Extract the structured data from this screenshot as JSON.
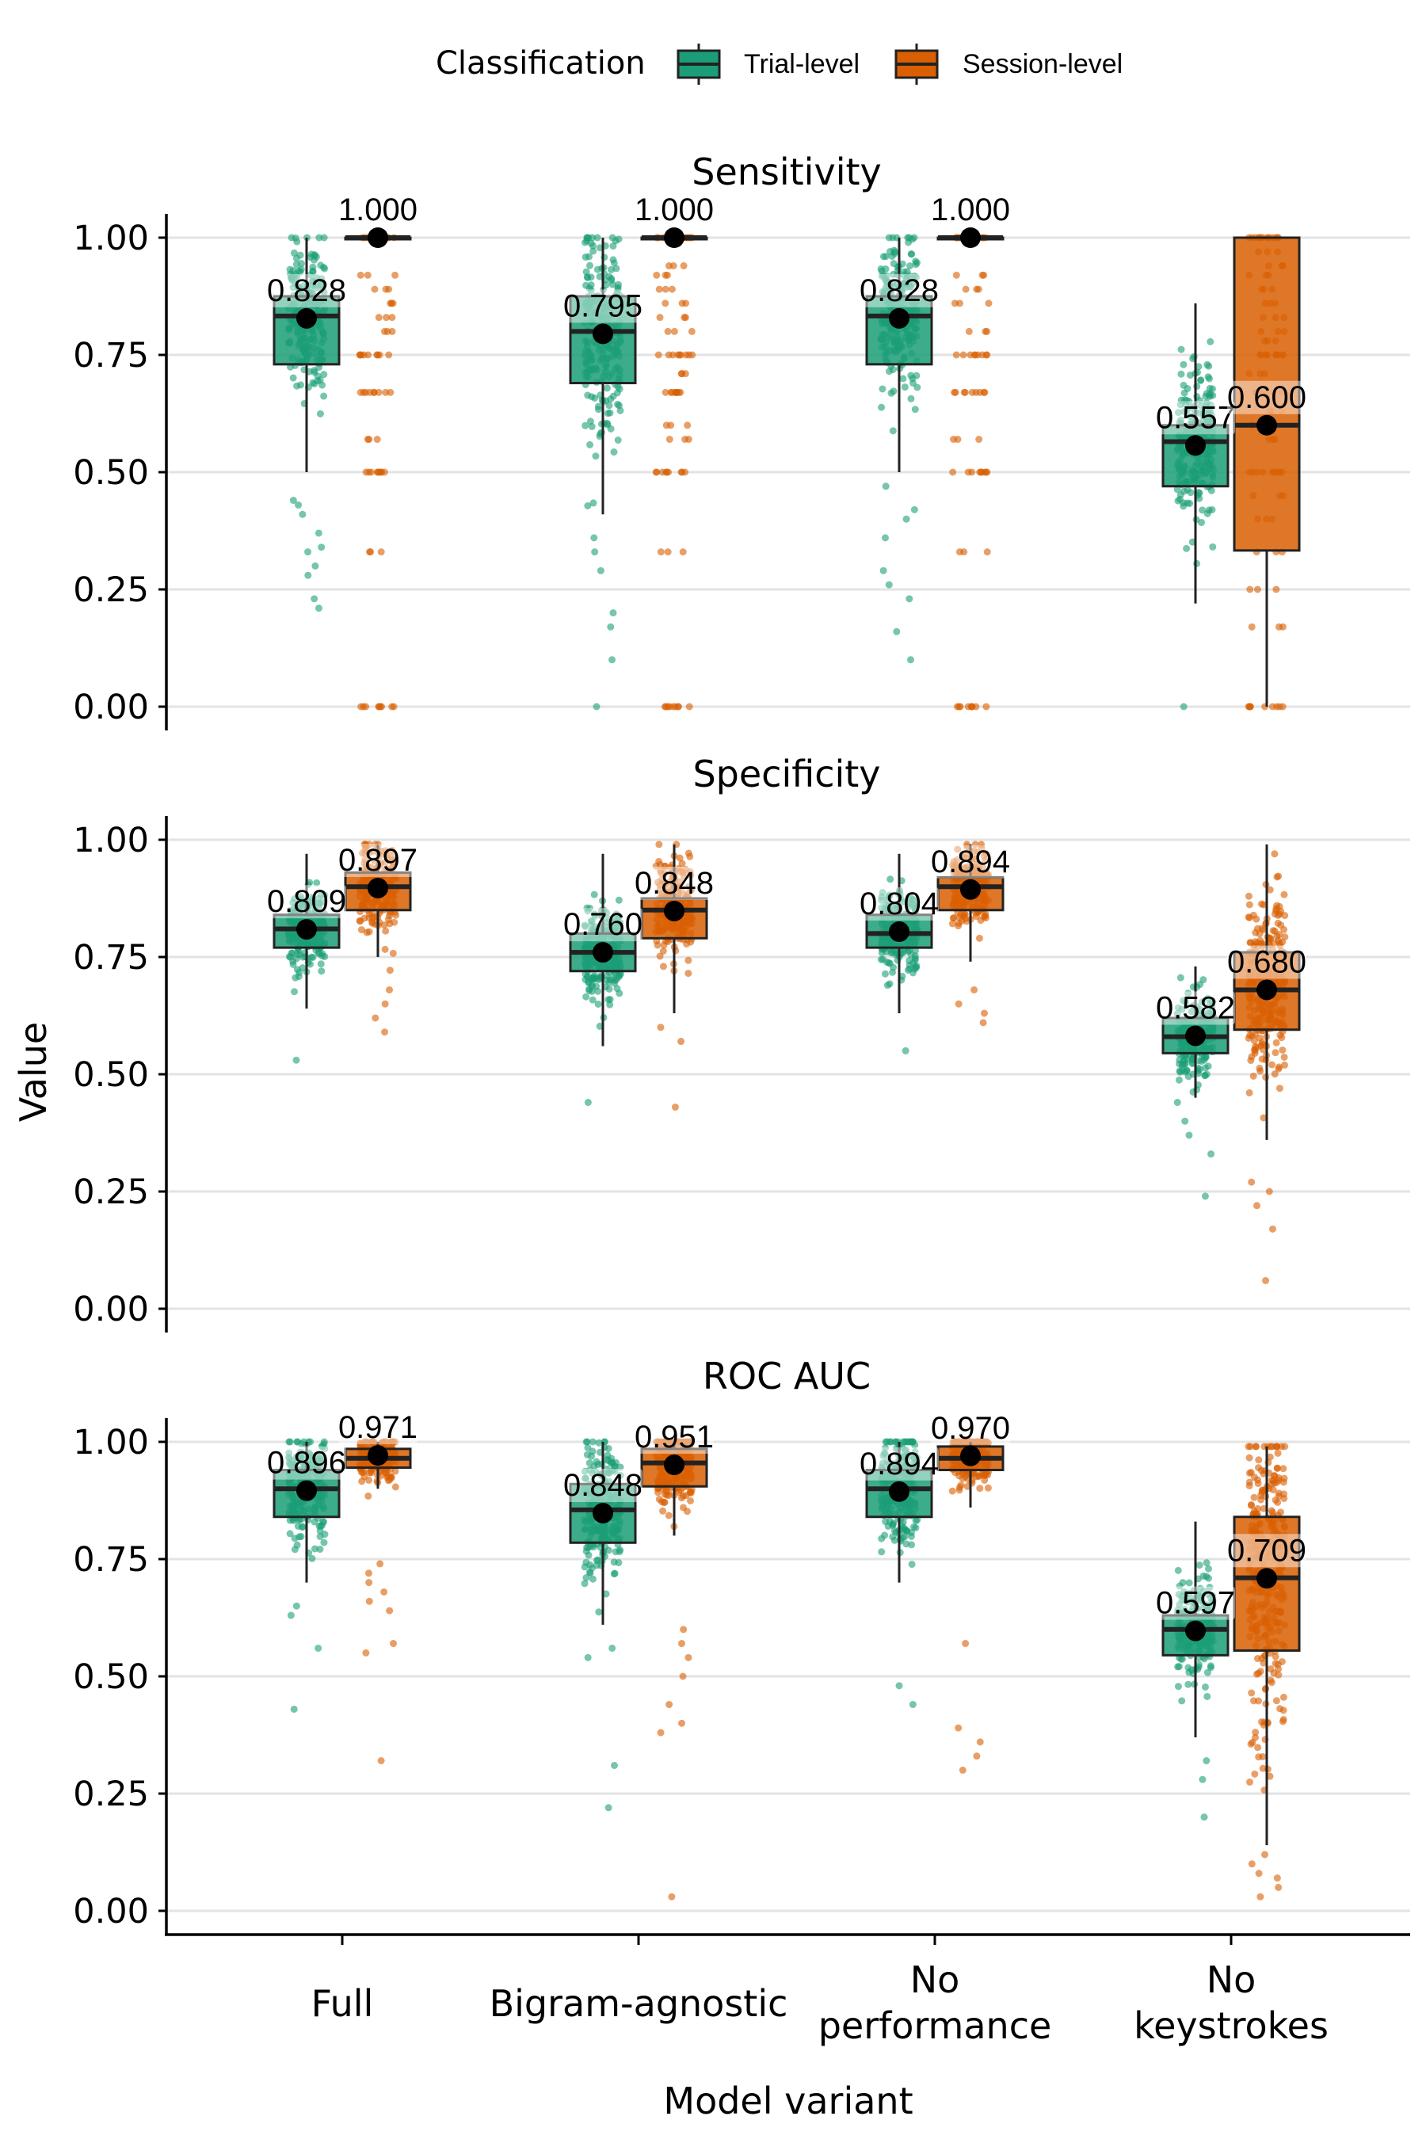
{
  "chart_data": {
    "type": "boxplot",
    "xlabel": "Model variant",
    "ylabel": "Value",
    "ylim": [
      0,
      1
    ],
    "yticks": [
      "0.00",
      "0.25",
      "0.50",
      "0.75",
      "1.00"
    ],
    "categories": [
      [
        "Full"
      ],
      [
        "Bigram-agnostic"
      ],
      [
        "No",
        "performance"
      ],
      [
        "No",
        "keystrokes"
      ]
    ],
    "legend": {
      "title": "Classification",
      "position": "top",
      "entries": [
        {
          "name": "Trial-level",
          "color": "#1b9e77"
        },
        {
          "name": "Session-level",
          "color": "#d95f02"
        }
      ]
    },
    "panels": [
      {
        "title": "Sensitivity",
        "groups": [
          {
            "cat": 0,
            "series": "Trial-level",
            "mean": 0.828,
            "label": "0.828",
            "q1": 0.73,
            "median": 0.833,
            "q3": 0.875,
            "whisker_low": 0.5,
            "whisker_high": 1.0,
            "n": 220,
            "spread_low": 0.5,
            "spread_high": 1.0,
            "outliers": [
              0.21,
              0.23,
              0.28,
              0.3,
              0.33,
              0.34,
              0.37,
              0.41,
              0.43,
              0.44
            ]
          },
          {
            "cat": 0,
            "series": "Session-level",
            "mean": 1.0,
            "label": "1.000",
            "q1": 1.0,
            "median": 1.0,
            "q3": 1.0,
            "whisker_low": 1.0,
            "whisker_high": 1.0,
            "n": 0,
            "levels": [
              1.0,
              0.92,
              0.89,
              0.86,
              0.83,
              0.8,
              0.75,
              0.67,
              0.57,
              0.5,
              0.33,
              0.0
            ]
          },
          {
            "cat": 1,
            "series": "Trial-level",
            "mean": 0.795,
            "label": "0.795",
            "q1": 0.69,
            "median": 0.8,
            "q3": 0.875,
            "whisker_low": 0.41,
            "whisker_high": 1.0,
            "n": 220,
            "spread_low": 0.42,
            "spread_high": 1.0,
            "outliers": [
              0.0,
              0.1,
              0.17,
              0.2,
              0.29,
              0.33,
              0.36
            ]
          },
          {
            "cat": 1,
            "series": "Session-level",
            "mean": 1.0,
            "label": "1.000",
            "q1": 1.0,
            "median": 1.0,
            "q3": 1.0,
            "whisker_low": 1.0,
            "whisker_high": 1.0,
            "n": 0,
            "levels": [
              1.0,
              0.94,
              0.92,
              0.89,
              0.86,
              0.83,
              0.8,
              0.75,
              0.71,
              0.67,
              0.6,
              0.57,
              0.5,
              0.33,
              0.0
            ]
          },
          {
            "cat": 2,
            "series": "Trial-level",
            "mean": 0.828,
            "label": "0.828",
            "q1": 0.73,
            "median": 0.833,
            "q3": 0.875,
            "whisker_low": 0.5,
            "whisker_high": 1.0,
            "n": 220,
            "spread_low": 0.5,
            "spread_high": 1.0,
            "outliers": [
              0.1,
              0.16,
              0.23,
              0.26,
              0.29,
              0.36,
              0.4,
              0.42,
              0.47
            ]
          },
          {
            "cat": 2,
            "series": "Session-level",
            "mean": 1.0,
            "label": "1.000",
            "q1": 1.0,
            "median": 1.0,
            "q3": 1.0,
            "whisker_low": 1.0,
            "whisker_high": 1.0,
            "n": 0,
            "levels": [
              1.0,
              0.92,
              0.89,
              0.86,
              0.8,
              0.75,
              0.67,
              0.57,
              0.5,
              0.33,
              0.0
            ]
          },
          {
            "cat": 3,
            "series": "Trial-level",
            "mean": 0.557,
            "label": "0.557",
            "q1": 0.47,
            "median": 0.565,
            "q3": 0.6,
            "whisker_low": 0.22,
            "whisker_high": 0.86,
            "n": 240,
            "spread_low": 0.19,
            "spread_high": 0.86,
            "outliers": [
              0.0
            ]
          },
          {
            "cat": 3,
            "series": "Session-level",
            "mean": 0.6,
            "label": "0.600",
            "q1": 0.333,
            "median": 0.6,
            "q3": 1.0,
            "whisker_low": 0.0,
            "whisker_high": 1.0,
            "n": 0,
            "levels": [
              1.0,
              0.97,
              0.94,
              0.92,
              0.89,
              0.86,
              0.83,
              0.8,
              0.78,
              0.75,
              0.71,
              0.67,
              0.63,
              0.6,
              0.57,
              0.5,
              0.45,
              0.4,
              0.33,
              0.25,
              0.17,
              0.0
            ]
          }
        ]
      },
      {
        "title": "Specificity",
        "groups": [
          {
            "cat": 0,
            "series": "Trial-level",
            "mean": 0.809,
            "label": "0.809",
            "q1": 0.77,
            "median": 0.81,
            "q3": 0.84,
            "whisker_low": 0.64,
            "whisker_high": 0.97,
            "n": 230,
            "spread_low": 0.61,
            "spread_high": 0.97,
            "outliers": [
              0.53
            ]
          },
          {
            "cat": 0,
            "series": "Session-level",
            "mean": 0.897,
            "label": "0.897",
            "q1": 0.85,
            "median": 0.9,
            "q3": 0.93,
            "whisker_low": 0.75,
            "whisker_high": 0.99,
            "n": 200,
            "spread_low": 0.7,
            "spread_high": 0.99,
            "outliers": [
              0.59,
              0.62,
              0.65,
              0.68
            ]
          },
          {
            "cat": 1,
            "series": "Trial-level",
            "mean": 0.76,
            "label": "0.760",
            "q1": 0.72,
            "median": 0.76,
            "q3": 0.8,
            "whisker_low": 0.56,
            "whisker_high": 0.97,
            "n": 230,
            "spread_low": 0.57,
            "spread_high": 0.97,
            "outliers": [
              0.44
            ]
          },
          {
            "cat": 1,
            "series": "Session-level",
            "mean": 0.848,
            "label": "0.848",
            "q1": 0.79,
            "median": 0.85,
            "q3": 0.875,
            "whisker_low": 0.63,
            "whisker_high": 0.99,
            "n": 210,
            "spread_low": 0.63,
            "spread_high": 0.99,
            "outliers": [
              0.43,
              0.57,
              0.6
            ]
          },
          {
            "cat": 2,
            "series": "Trial-level",
            "mean": 0.804,
            "label": "0.804",
            "q1": 0.77,
            "median": 0.8,
            "q3": 0.84,
            "whisker_low": 0.63,
            "whisker_high": 0.97,
            "n": 230,
            "spread_low": 0.61,
            "spread_high": 0.97,
            "outliers": [
              0.55
            ]
          },
          {
            "cat": 2,
            "series": "Session-level",
            "mean": 0.894,
            "label": "0.894",
            "q1": 0.85,
            "median": 0.9,
            "q3": 0.92,
            "whisker_low": 0.74,
            "whisker_high": 0.99,
            "n": 200,
            "spread_low": 0.7,
            "spread_high": 0.99,
            "outliers": [
              0.61,
              0.63,
              0.65,
              0.68
            ]
          },
          {
            "cat": 3,
            "series": "Trial-level",
            "mean": 0.582,
            "label": "0.582",
            "q1": 0.545,
            "median": 0.58,
            "q3": 0.62,
            "whisker_low": 0.45,
            "whisker_high": 0.73,
            "n": 220,
            "spread_low": 0.44,
            "spread_high": 0.84,
            "outliers": [
              0.24,
              0.33,
              0.37,
              0.4
            ]
          },
          {
            "cat": 3,
            "series": "Session-level",
            "mean": 0.68,
            "label": "0.680",
            "q1": 0.595,
            "median": 0.68,
            "q3": 0.76,
            "whisker_low": 0.36,
            "whisker_high": 0.99,
            "n": 260,
            "spread_low": 0.36,
            "spread_high": 0.97,
            "outliers": [
              0.06,
              0.17,
              0.22,
              0.25,
              0.27
            ]
          }
        ]
      },
      {
        "title": "ROC AUC",
        "groups": [
          {
            "cat": 0,
            "series": "Trial-level",
            "mean": 0.896,
            "label": "0.896",
            "q1": 0.84,
            "median": 0.9,
            "q3": 0.94,
            "whisker_low": 0.7,
            "whisker_high": 1.0,
            "n": 230,
            "spread_low": 0.68,
            "spread_high": 1.0,
            "outliers": [
              0.43,
              0.56,
              0.63,
              0.65
            ]
          },
          {
            "cat": 0,
            "series": "Session-level",
            "mean": 0.971,
            "label": "0.971",
            "q1": 0.945,
            "median": 0.965,
            "q3": 0.985,
            "whisker_low": 0.9,
            "whisker_high": 1.0,
            "n": 220,
            "spread_low": 0.78,
            "spread_high": 1.0,
            "outliers": [
              0.32,
              0.55,
              0.57,
              0.64,
              0.66,
              0.68,
              0.7,
              0.72,
              0.74
            ]
          },
          {
            "cat": 1,
            "series": "Trial-level",
            "mean": 0.848,
            "label": "0.848",
            "q1": 0.785,
            "median": 0.855,
            "q3": 0.91,
            "whisker_low": 0.61,
            "whisker_high": 1.0,
            "n": 230,
            "spread_low": 0.58,
            "spread_high": 1.0,
            "outliers": [
              0.22,
              0.31,
              0.54,
              0.56
            ]
          },
          {
            "cat": 1,
            "series": "Session-level",
            "mean": 0.951,
            "label": "0.951",
            "q1": 0.905,
            "median": 0.955,
            "q3": 0.985,
            "whisker_low": 0.8,
            "whisker_high": 1.0,
            "n": 220,
            "spread_low": 0.64,
            "spread_high": 1.0,
            "outliers": [
              0.03,
              0.38,
              0.4,
              0.44,
              0.5,
              0.54,
              0.57,
              0.6
            ]
          },
          {
            "cat": 2,
            "series": "Trial-level",
            "mean": 0.894,
            "label": "0.894",
            "q1": 0.84,
            "median": 0.9,
            "q3": 0.94,
            "whisker_low": 0.7,
            "whisker_high": 1.0,
            "n": 230,
            "spread_low": 0.66,
            "spread_high": 1.0,
            "outliers": [
              0.44,
              0.48
            ]
          },
          {
            "cat": 2,
            "series": "Session-level",
            "mean": 0.97,
            "label": "0.970",
            "q1": 0.94,
            "median": 0.965,
            "q3": 0.99,
            "whisker_low": 0.86,
            "whisker_high": 1.0,
            "n": 220,
            "spread_low": 0.64,
            "spread_high": 1.0,
            "outliers": [
              0.3,
              0.33,
              0.36,
              0.39,
              0.57
            ]
          },
          {
            "cat": 3,
            "series": "Trial-level",
            "mean": 0.597,
            "label": "0.597",
            "q1": 0.545,
            "median": 0.6,
            "q3": 0.63,
            "whisker_low": 0.37,
            "whisker_high": 0.83,
            "n": 220,
            "spread_low": 0.37,
            "spread_high": 0.85,
            "outliers": [
              0.2,
              0.28,
              0.32
            ]
          },
          {
            "cat": 3,
            "series": "Session-level",
            "mean": 0.709,
            "label": "0.709",
            "q1": 0.555,
            "median": 0.71,
            "q3": 0.84,
            "whisker_low": 0.14,
            "whisker_high": 0.99,
            "n": 320,
            "spread_low": 0.14,
            "spread_high": 0.99,
            "outliers": [
              0.03,
              0.05,
              0.07,
              0.08,
              0.1,
              0.12
            ]
          }
        ]
      }
    ]
  }
}
